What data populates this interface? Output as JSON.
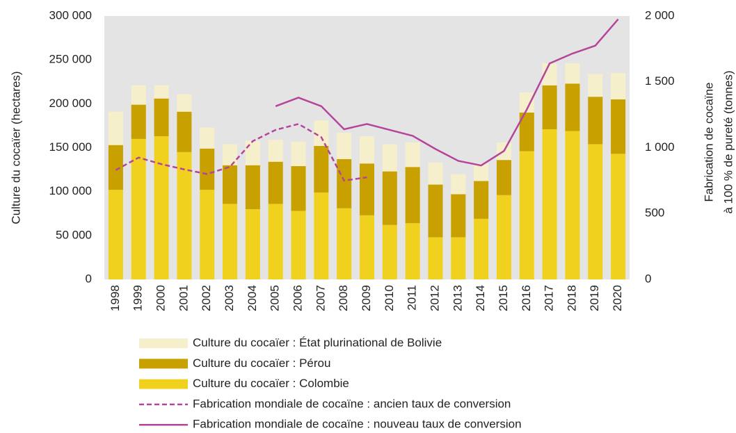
{
  "chart_data": {
    "type": "bar",
    "stacked": true,
    "y_label": "Culture du cocaïer (hectares)",
    "y2_label": [
      "Fabrication de cocaïne",
      "à 100 % de pureté (tonnes)"
    ],
    "categories": [
      "1998",
      "1999",
      "2000",
      "2001",
      "2002",
      "2003",
      "2004",
      "2005",
      "2006",
      "2007",
      "2008",
      "2009",
      "2010",
      "2011",
      "2012",
      "2013",
      "2014",
      "2015",
      "2016",
      "2017",
      "2018",
      "2019",
      "2020"
    ],
    "series": [
      {
        "name": "Culture du cocaïer : État plurinational de Bolivie",
        "type": "bar",
        "color": "#f6efcc",
        "values": [
          38000,
          22000,
          15000,
          20000,
          24000,
          24000,
          28000,
          25000,
          28000,
          29000,
          30000,
          31000,
          31000,
          28000,
          25000,
          23000,
          20000,
          20000,
          23000,
          25000,
          23000,
          26000,
          30000
        ]
      },
      {
        "name": "Culture du cocaïer : Pérou",
        "type": "bar",
        "color": "#c8a000",
        "values": [
          51000,
          39000,
          43000,
          46000,
          47000,
          44000,
          50000,
          48000,
          51000,
          53000,
          56000,
          59000,
          61000,
          64000,
          60000,
          49000,
          43000,
          40000,
          44000,
          50000,
          54000,
          54000,
          62000
        ]
      },
      {
        "name": "Culture du cocaïer : Colombie",
        "type": "bar",
        "color": "#f0d21e",
        "values": [
          102000,
          160000,
          163000,
          145000,
          102000,
          86000,
          80000,
          86000,
          78000,
          99000,
          81000,
          73000,
          62000,
          64000,
          48000,
          48000,
          69000,
          96000,
          146000,
          171000,
          169000,
          154000,
          143000
        ]
      },
      {
        "name": "Fabrication mondiale de cocaïne : ancien taux de conversion",
        "type": "line",
        "axis": "y2",
        "dash": true,
        "color": "#b5449a",
        "values": [
          830,
          925,
          875,
          835,
          800,
          855,
          1050,
          1135,
          1180,
          1080,
          750,
          775,
          null,
          null,
          null,
          null,
          null,
          null,
          null,
          null,
          null,
          null,
          null
        ]
      },
      {
        "name": "Fabrication mondiale de cocaïne : nouveau taux de conversion",
        "type": "line",
        "axis": "y2",
        "dash": false,
        "color": "#b5449a",
        "values": [
          null,
          null,
          null,
          null,
          null,
          null,
          null,
          1315,
          1380,
          1315,
          1140,
          1180,
          1135,
          1090,
          990,
          900,
          865,
          975,
          1290,
          1640,
          1715,
          1775,
          1975
        ]
      }
    ],
    "ylim": [
      0,
      300000
    ],
    "yticks": [
      0,
      {
        "value": 50000,
        "label": "50 000"
      },
      {
        "value": 100000,
        "label": "100 000"
      },
      {
        "value": 150000,
        "label": "150 000"
      },
      {
        "value": 200000,
        "label": "200 000"
      },
      {
        "value": 250000,
        "label": "250 000"
      },
      {
        "value": 300000,
        "label": "300 000"
      }
    ],
    "y2lim": [
      0,
      2000
    ],
    "y2ticks": [
      0,
      500,
      {
        "value": 1000,
        "label": "1 000"
      },
      {
        "value": 1500,
        "label": "1 500"
      },
      {
        "value": 2000,
        "label": "2 000"
      }
    ],
    "grid": false,
    "legend": "bottom",
    "plot_background": "#e4e4e4"
  }
}
